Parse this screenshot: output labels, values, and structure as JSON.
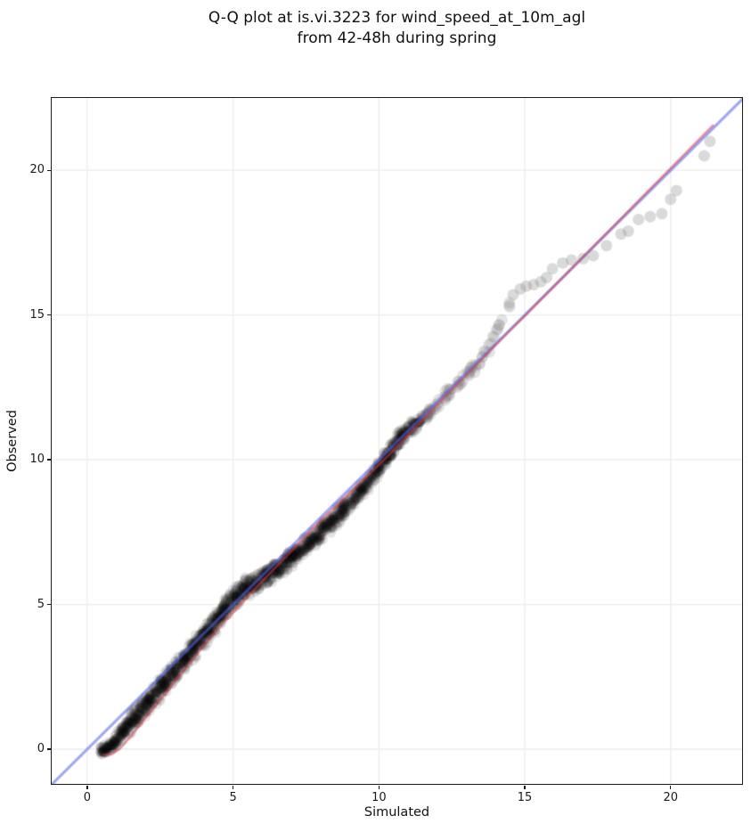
{
  "title": {
    "line1": "Q-Q plot at is.vi.3223 for wind_speed_at_10m_agl",
    "line2": "from 42-48h during spring"
  },
  "axes": {
    "xlabel": "Simulated",
    "ylabel": "Observed",
    "x_ticks": [
      0,
      5,
      10,
      15,
      20
    ],
    "y_ticks": [
      0,
      5,
      10,
      15,
      20
    ],
    "x_range": [
      -1.22,
      22.45
    ],
    "y_range": [
      -1.2,
      22.5
    ],
    "grid": true,
    "grid_color": "#ececec",
    "spine_color": "#1b1b1b"
  },
  "chart_data": {
    "type": "scatter",
    "title": "Q-Q plot at is.vi.3223 for wind_speed_at_10m_agl from 42-48h during spring",
    "xlabel": "Simulated",
    "ylabel": "Observed",
    "xlim": [
      -1.22,
      22.45
    ],
    "ylim": [
      -1.2,
      22.5
    ],
    "legend": "none",
    "identity_line": {
      "name": "identity-reference-line",
      "color": "#5560eb",
      "opacity": 0.55,
      "width": 3.2,
      "from": [
        -1.22,
        -1.22
      ],
      "to": [
        22.45,
        22.45
      ]
    },
    "fit_line": {
      "name": "qq-fit-line",
      "color": "#d63c46",
      "opacity": 0.5,
      "width": 2.8,
      "points": [
        [
          0.55,
          -0.2
        ],
        [
          0.8,
          -0.18
        ],
        [
          1.1,
          0.0
        ],
        [
          1.5,
          0.45
        ],
        [
          2.0,
          1.1
        ],
        [
          2.5,
          1.7
        ],
        [
          3.0,
          2.35
        ],
        [
          3.5,
          2.95
        ],
        [
          4.0,
          3.6
        ],
        [
          4.5,
          4.18
        ],
        [
          5.0,
          4.72
        ],
        [
          5.5,
          5.28
        ],
        [
          6.0,
          5.8
        ],
        [
          6.5,
          6.33
        ],
        [
          7.0,
          6.85
        ],
        [
          7.5,
          7.37
        ],
        [
          8.0,
          7.88
        ],
        [
          8.5,
          8.37
        ],
        [
          9.0,
          8.86
        ],
        [
          9.5,
          9.35
        ],
        [
          10.0,
          9.83
        ],
        [
          10.5,
          10.33
        ],
        [
          11.0,
          10.86
        ],
        [
          11.5,
          11.38
        ],
        [
          12.0,
          11.9
        ],
        [
          12.5,
          12.41
        ],
        [
          13.0,
          12.92
        ],
        [
          13.5,
          13.44
        ],
        [
          14.0,
          13.96
        ],
        [
          14.5,
          14.47
        ],
        [
          15.0,
          14.97
        ],
        [
          15.5,
          15.48
        ],
        [
          16.0,
          15.99
        ],
        [
          16.5,
          16.5
        ],
        [
          17.0,
          17.01
        ],
        [
          17.5,
          17.52
        ],
        [
          18.0,
          18.03
        ],
        [
          18.5,
          18.54
        ],
        [
          19.0,
          19.05
        ],
        [
          19.5,
          19.56
        ],
        [
          20.0,
          20.07
        ],
        [
          20.5,
          20.58
        ],
        [
          21.0,
          21.09
        ],
        [
          21.45,
          21.55
        ]
      ]
    },
    "series": [
      {
        "name": "qq-points-dense",
        "type": "band",
        "color": "rgba(0,0,0,0.10)",
        "radius": 5.5,
        "path": [
          [
            0.45,
            -0.08,
            0.22,
            130
          ],
          [
            0.7,
            0.02,
            0.28,
            170
          ],
          [
            1.0,
            0.33,
            0.35,
            175
          ],
          [
            1.5,
            0.95,
            0.42,
            175
          ],
          [
            2.0,
            1.52,
            0.48,
            175
          ],
          [
            2.5,
            2.1,
            0.5,
            175
          ],
          [
            3.0,
            2.7,
            0.52,
            175
          ],
          [
            3.5,
            3.32,
            0.52,
            175
          ],
          [
            4.0,
            3.92,
            0.55,
            175
          ],
          [
            4.5,
            4.55,
            0.55,
            175
          ],
          [
            5.0,
            5.2,
            0.52,
            170
          ],
          [
            5.4,
            5.52,
            0.5,
            165
          ],
          [
            5.8,
            5.78,
            0.45,
            155
          ],
          [
            6.2,
            6.0,
            0.42,
            155
          ],
          [
            6.6,
            6.3,
            0.42,
            155
          ],
          [
            7.0,
            6.65,
            0.42,
            155
          ],
          [
            7.4,
            6.95,
            0.42,
            155
          ],
          [
            7.8,
            7.3,
            0.42,
            150
          ],
          [
            8.2,
            7.7,
            0.42,
            145
          ],
          [
            8.6,
            8.1,
            0.4,
            145
          ],
          [
            9.0,
            8.5,
            0.4,
            140
          ],
          [
            9.4,
            8.95,
            0.38,
            135
          ],
          [
            9.8,
            9.45,
            0.38,
            135
          ],
          [
            10.1,
            9.85,
            0.4,
            145
          ],
          [
            10.4,
            10.3,
            0.42,
            155
          ],
          [
            10.7,
            10.72,
            0.42,
            155
          ],
          [
            10.95,
            11.0,
            0.38,
            135
          ],
          [
            11.2,
            11.2,
            0.32,
            100
          ],
          [
            11.5,
            11.42,
            0.28,
            70
          ],
          [
            11.8,
            11.7,
            0.24,
            50
          ]
        ]
      },
      {
        "name": "qq-points-mid",
        "type": "band",
        "color": "rgba(120,120,120,0.20)",
        "radius": 6.5,
        "path": [
          [
            11.6,
            11.5,
            0.3,
            28
          ],
          [
            12.0,
            11.9,
            0.28,
            28
          ],
          [
            12.4,
            12.3,
            0.26,
            26
          ],
          [
            12.8,
            12.72,
            0.25,
            24
          ],
          [
            13.2,
            13.1,
            0.24,
            22
          ],
          [
            13.5,
            13.42,
            0.22,
            20
          ],
          [
            13.8,
            13.95,
            0.22,
            18
          ],
          [
            14.05,
            14.5,
            0.2,
            16
          ],
          [
            14.3,
            15.0,
            0.18,
            14
          ],
          [
            14.5,
            15.45,
            0.16,
            12
          ]
        ]
      },
      {
        "name": "qq-points-tail",
        "type": "points",
        "color": "rgba(150,150,150,0.35)",
        "radius": 6.5,
        "points": [
          [
            14.6,
            15.7
          ],
          [
            14.85,
            15.9
          ],
          [
            15.05,
            16.0
          ],
          [
            15.3,
            16.05
          ],
          [
            15.55,
            16.15
          ],
          [
            15.75,
            16.3
          ],
          [
            15.95,
            16.6
          ],
          [
            16.3,
            16.8
          ],
          [
            16.6,
            16.9
          ],
          [
            17.0,
            16.95
          ],
          [
            17.35,
            17.05
          ],
          [
            17.8,
            17.4
          ],
          [
            18.3,
            17.8
          ],
          [
            18.55,
            17.9
          ],
          [
            18.9,
            18.3
          ],
          [
            19.3,
            18.4
          ],
          [
            19.7,
            18.5
          ],
          [
            20.0,
            19.0
          ],
          [
            20.2,
            19.3
          ],
          [
            21.15,
            20.5
          ],
          [
            21.35,
            21.0
          ]
        ]
      }
    ]
  }
}
